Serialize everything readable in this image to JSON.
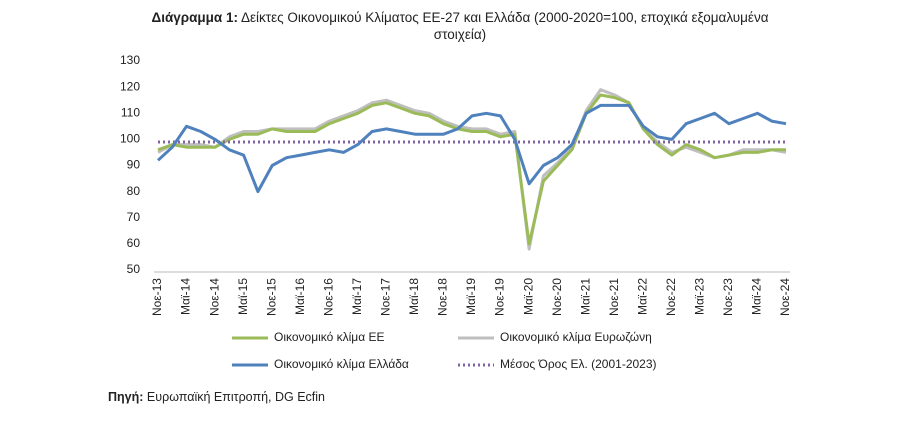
{
  "chart_data": {
    "type": "line",
    "title_label": "Διάγραμμα 1:",
    "title": "Δείκτες Οικονομικού Κλίματος ΕΕ-27 και Ελλάδα (2000-2020=100, εποχικά εξομαλυμένα στοιχεία)",
    "source_label": "Πηγή:",
    "source": "Ευρωπαϊκή Επιτροπή, DG Ecfin",
    "categories": [
      "Νοε-13",
      null,
      "Μαϊ-14",
      null,
      "Νοε-14",
      null,
      "Μαϊ-15",
      null,
      "Νοε-15",
      null,
      "Μαϊ-16",
      null,
      "Νοε-16",
      null,
      "Μαϊ-17",
      null,
      "Νοε-17",
      null,
      "Μαϊ-18",
      null,
      "Νοε-18",
      null,
      "Μαϊ-19",
      null,
      "Νοε-19",
      null,
      "Μαϊ-20",
      null,
      "Νοε-20",
      null,
      "Μαϊ-21",
      null,
      "Νοε-21",
      null,
      "Μαϊ-22",
      null,
      "Νοε-22",
      null,
      "Μαϊ-23",
      null,
      "Νοε-23",
      null,
      "Μαϊ-24",
      null,
      "Νοε-24"
    ],
    "series": [
      {
        "name": "Οικονομικό κλίμα ΕΕ",
        "color": "#9bbb59",
        "style": "solid",
        "values": [
          96,
          98,
          97,
          97,
          97,
          100,
          102,
          102,
          104,
          103,
          103,
          103,
          106,
          108,
          110,
          113,
          114,
          112,
          110,
          109,
          106,
          104,
          103,
          103,
          101,
          102,
          60,
          84,
          90,
          96,
          110,
          117,
          116,
          114,
          104,
          98,
          94,
          98,
          96,
          93,
          94,
          95,
          95,
          96,
          96
        ]
      },
      {
        "name": "Οικονομικό κλίμα Ευρωζώνη",
        "color": "#bfbfbf",
        "style": "solid",
        "values": [
          95,
          98,
          98,
          98,
          97,
          101,
          103,
          103,
          104,
          104,
          104,
          104,
          107,
          109,
          111,
          114,
          115,
          113,
          111,
          110,
          107,
          105,
          104,
          104,
          102,
          103,
          58,
          86,
          91,
          97,
          111,
          119,
          117,
          114,
          104,
          99,
          95,
          97,
          95,
          93,
          94,
          96,
          96,
          96,
          95
        ]
      },
      {
        "name": "Οικονομικό κλίμα Ελλάδα",
        "color": "#4f81bd",
        "style": "solid",
        "values": [
          92,
          97,
          105,
          103,
          100,
          96,
          94,
          80,
          90,
          93,
          94,
          95,
          96,
          95,
          98,
          103,
          104,
          103,
          102,
          102,
          102,
          104,
          109,
          110,
          109,
          100,
          83,
          90,
          93,
          98,
          110,
          113,
          113,
          113,
          105,
          101,
          100,
          106,
          108,
          110,
          106,
          108,
          110,
          107,
          106
        ]
      },
      {
        "name": "Μέσος Όρος Ελ. (2001-2023)",
        "color": "#8064a2",
        "style": "dotted",
        "values": [
          99,
          99,
          99,
          99,
          99,
          99,
          99,
          99,
          99,
          99,
          99,
          99,
          99,
          99,
          99,
          99,
          99,
          99,
          99,
          99,
          99,
          99,
          99,
          99,
          99,
          99,
          99,
          99,
          99,
          99,
          99,
          99,
          99,
          99,
          99,
          99,
          99,
          99,
          99,
          99,
          99,
          99,
          99,
          99,
          99
        ]
      }
    ],
    "ylim": [
      50,
      130
    ],
    "yticks": [
      50,
      60,
      70,
      80,
      90,
      100,
      110,
      120,
      130
    ],
    "grid": false
  }
}
